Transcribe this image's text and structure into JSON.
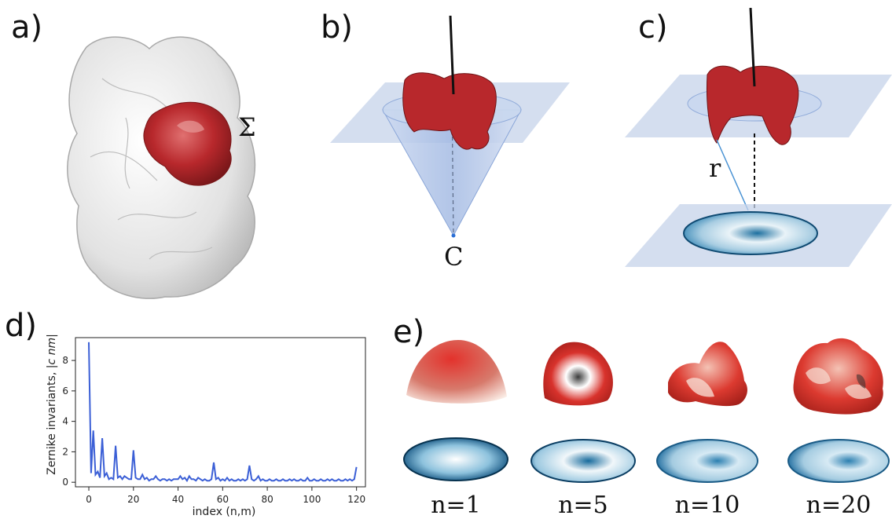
{
  "panels": {
    "a": {
      "label": "a)",
      "surface_symbol": "Σ"
    },
    "b": {
      "label": "b)",
      "apex_label": "C"
    },
    "c": {
      "label": "c)",
      "distance_label": "r"
    },
    "d": {
      "label": "d)"
    },
    "e": {
      "label": "e)",
      "orders": [
        "n=1",
        "n=5",
        "n=10",
        "n=20"
      ]
    }
  },
  "colors": {
    "protein_surface": "#e4e4e4",
    "patch_red": "#b8282c",
    "plane_blue": "#c5d3ea",
    "disk_blue": "#2a7fb0",
    "line_series": "#3b5fd6"
  },
  "chart_data": {
    "type": "line",
    "xlabel": "index (n,m)",
    "ylabel": "Zernike invariants, |c_nm|",
    "xlim": [
      -6,
      124
    ],
    "ylim": [
      -0.3,
      9.5
    ],
    "xticks": [
      0,
      20,
      40,
      60,
      80,
      100,
      120
    ],
    "yticks": [
      0,
      2,
      4,
      6,
      8
    ],
    "grid": false,
    "x": [
      0,
      1,
      2,
      3,
      4,
      5,
      6,
      7,
      8,
      9,
      10,
      11,
      12,
      13,
      14,
      15,
      16,
      17,
      18,
      19,
      20,
      21,
      22,
      23,
      24,
      25,
      26,
      27,
      28,
      29,
      30,
      31,
      32,
      33,
      34,
      35,
      36,
      37,
      38,
      39,
      40,
      41,
      42,
      43,
      44,
      45,
      46,
      47,
      48,
      49,
      50,
      51,
      52,
      53,
      54,
      55,
      56,
      57,
      58,
      59,
      60,
      61,
      62,
      63,
      64,
      65,
      66,
      67,
      68,
      69,
      70,
      71,
      72,
      73,
      74,
      75,
      76,
      77,
      78,
      79,
      80,
      81,
      82,
      83,
      84,
      85,
      86,
      87,
      88,
      89,
      90,
      91,
      92,
      93,
      94,
      95,
      96,
      97,
      98,
      99,
      100,
      101,
      102,
      103,
      104,
      105,
      106,
      107,
      108,
      109,
      110,
      111,
      112,
      113,
      114,
      115,
      116,
      117,
      118,
      119,
      120
    ],
    "values": [
      9.2,
      0.6,
      3.4,
      0.5,
      0.7,
      0.3,
      2.9,
      0.4,
      0.6,
      0.2,
      0.3,
      0.2,
      2.4,
      0.3,
      0.4,
      0.2,
      0.4,
      0.3,
      0.2,
      0.2,
      2.1,
      0.3,
      0.2,
      0.2,
      0.5,
      0.2,
      0.3,
      0.1,
      0.2,
      0.2,
      0.4,
      0.2,
      0.1,
      0.2,
      0.2,
      0.1,
      0.2,
      0.1,
      0.2,
      0.2,
      0.2,
      0.4,
      0.2,
      0.3,
      0.1,
      0.4,
      0.2,
      0.2,
      0.1,
      0.3,
      0.2,
      0.1,
      0.2,
      0.1,
      0.1,
      0.2,
      1.3,
      0.2,
      0.3,
      0.1,
      0.2,
      0.1,
      0.3,
      0.1,
      0.2,
      0.1,
      0.1,
      0.2,
      0.1,
      0.2,
      0.1,
      0.2,
      1.1,
      0.2,
      0.1,
      0.2,
      0.4,
      0.1,
      0.2,
      0.1,
      0.1,
      0.2,
      0.1,
      0.1,
      0.2,
      0.1,
      0.1,
      0.2,
      0.1,
      0.1,
      0.2,
      0.1,
      0.2,
      0.1,
      0.1,
      0.2,
      0.1,
      0.1,
      0.3,
      0.1,
      0.1,
      0.2,
      0.1,
      0.1,
      0.2,
      0.1,
      0.1,
      0.2,
      0.1,
      0.2,
      0.1,
      0.1,
      0.2,
      0.1,
      0.1,
      0.2,
      0.1,
      0.2,
      0.1,
      0.2,
      1.0
    ]
  }
}
